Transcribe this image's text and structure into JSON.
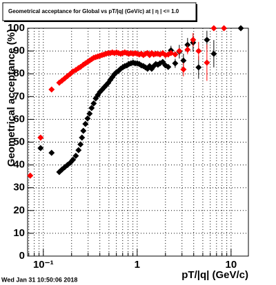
{
  "chart_data": {
    "type": "scatter",
    "title": "Geometrical acceptance for Global vs pT/|q| (GeV/c) at | η | <= 1.0",
    "x_label": "pT/|q| (GeV/c)",
    "y_label": "Geometrical acceptance (%)",
    "timestamp": "Wed Jan 31 10:50:06 2018",
    "log_x": true,
    "grid": true,
    "xlim": [
      0.068,
      15.3
    ],
    "ylim": [
      0,
      100
    ],
    "xticks": [
      {
        "value": 0.1,
        "label": "10⁻¹"
      },
      1,
      10
    ],
    "xminorticks": [
      0.07,
      0.08,
      0.09,
      0.2,
      0.3,
      0.4,
      0.5,
      0.6,
      0.7,
      0.8,
      0.9,
      2,
      3,
      4,
      5,
      6,
      7,
      8,
      9
    ],
    "yticks": [
      0,
      10,
      20,
      30,
      40,
      50,
      60,
      70,
      80,
      90,
      100
    ],
    "series": [
      {
        "color": "#000000",
        "x": [
          0.0935,
          0.1225,
          0.148,
          0.158,
          0.169,
          0.181,
          0.194,
          0.207,
          0.222,
          0.237,
          0.249,
          0.258,
          0.267,
          0.281,
          0.296,
          0.311,
          0.327,
          0.344,
          0.362,
          0.381,
          0.401,
          0.422,
          0.444,
          0.467,
          0.491,
          0.517,
          0.543,
          0.572,
          0.602,
          0.633,
          0.667,
          0.701,
          0.738,
          0.776,
          0.817,
          0.859,
          0.904,
          0.951,
          1.0,
          1.052,
          1.107,
          1.165,
          1.225,
          1.289,
          1.356,
          1.427,
          1.501,
          1.58,
          1.662,
          1.749,
          1.871,
          2.0,
          2.14,
          2.29,
          2.54,
          2.81,
          3.11,
          3.44,
          3.94,
          4.51,
          5.53,
          6.55,
          12.7
        ],
        "values": [
          47.4,
          45.3,
          36.9,
          38,
          39,
          40,
          41,
          42.3,
          44,
          46.5,
          49,
          52,
          55,
          58,
          60.4,
          62.5,
          65,
          67,
          69.2,
          70.7,
          72,
          73,
          74,
          75,
          76,
          77.3,
          78.5,
          79.8,
          80.7,
          81.3,
          82.2,
          82.8,
          83.4,
          83.7,
          84.3,
          84.6,
          84.9,
          84.6,
          84.6,
          84.3,
          83.7,
          83.4,
          82.8,
          82.2,
          83.4,
          82.2,
          83.4,
          84.3,
          84,
          84.6,
          85.2,
          83.7,
          83,
          90.3,
          84.6,
          89.7,
          85.8,
          92.7,
          93.7,
          82.8,
          94.9,
          88.8,
          100
        ],
        "errors": [
          0,
          0,
          0,
          0,
          0,
          0,
          0,
          0,
          0,
          0,
          0,
          0,
          0,
          0,
          0,
          0,
          0,
          0,
          0,
          0,
          0,
          0,
          0,
          0,
          0,
          0,
          0,
          0,
          0,
          0,
          0,
          0,
          0,
          0,
          0,
          0,
          0,
          0,
          0,
          0,
          0,
          0,
          0,
          0,
          0,
          0,
          0,
          0,
          0,
          0,
          0,
          0,
          0,
          2,
          2,
          3,
          3,
          3,
          4,
          5,
          4,
          6,
          0
        ]
      },
      {
        "color": "#ff0000",
        "x": [
          0.0725,
          0.0935,
          0.1225,
          0.148,
          0.158,
          0.169,
          0.181,
          0.194,
          0.207,
          0.222,
          0.237,
          0.249,
          0.267,
          0.281,
          0.296,
          0.311,
          0.327,
          0.344,
          0.362,
          0.381,
          0.401,
          0.422,
          0.444,
          0.467,
          0.491,
          0.517,
          0.543,
          0.572,
          0.602,
          0.633,
          0.667,
          0.701,
          0.738,
          0.776,
          0.817,
          0.859,
          0.904,
          0.951,
          1.0,
          1.052,
          1.107,
          1.165,
          1.225,
          1.289,
          1.356,
          1.427,
          1.501,
          1.58,
          1.662,
          1.749,
          1.871,
          2.0,
          2.14,
          2.29,
          2.54,
          2.81,
          3.11,
          3.44,
          3.94,
          4.51,
          5.53,
          6.55,
          8.4
        ],
        "values": [
          35.3,
          52,
          73.1,
          76.1,
          77,
          78,
          79,
          80,
          81,
          81.7,
          82.5,
          83,
          84,
          84.6,
          85.2,
          85.8,
          86.4,
          87,
          87.3,
          87.6,
          87.9,
          88.2,
          88.5,
          88.8,
          89.1,
          89.1,
          89.4,
          89.1,
          89.4,
          89.1,
          88.8,
          89.1,
          89.4,
          89.1,
          88.8,
          89.1,
          88.8,
          89.1,
          88.8,
          88.5,
          88.8,
          88.2,
          88.8,
          89.1,
          88.2,
          89.1,
          88.5,
          88.8,
          88.8,
          88.5,
          89.1,
          88.2,
          88.5,
          89.1,
          88.5,
          90.0,
          81.9,
          90.6,
          94.9,
          90,
          84.9,
          100,
          100
        ],
        "errors": [
          0,
          0,
          0,
          0,
          0,
          0,
          0,
          0,
          0,
          0,
          0,
          0,
          0,
          0,
          0,
          0,
          0,
          0,
          0,
          0,
          0,
          0,
          0,
          0,
          0,
          0,
          0,
          0,
          0,
          0,
          0,
          0,
          0,
          0,
          0,
          0,
          0,
          0,
          0,
          0,
          0,
          0,
          0,
          0,
          0,
          0,
          0,
          0,
          0,
          0,
          0,
          0,
          0,
          0,
          0,
          0,
          3,
          2,
          3,
          4,
          8,
          0,
          0
        ]
      }
    ]
  }
}
